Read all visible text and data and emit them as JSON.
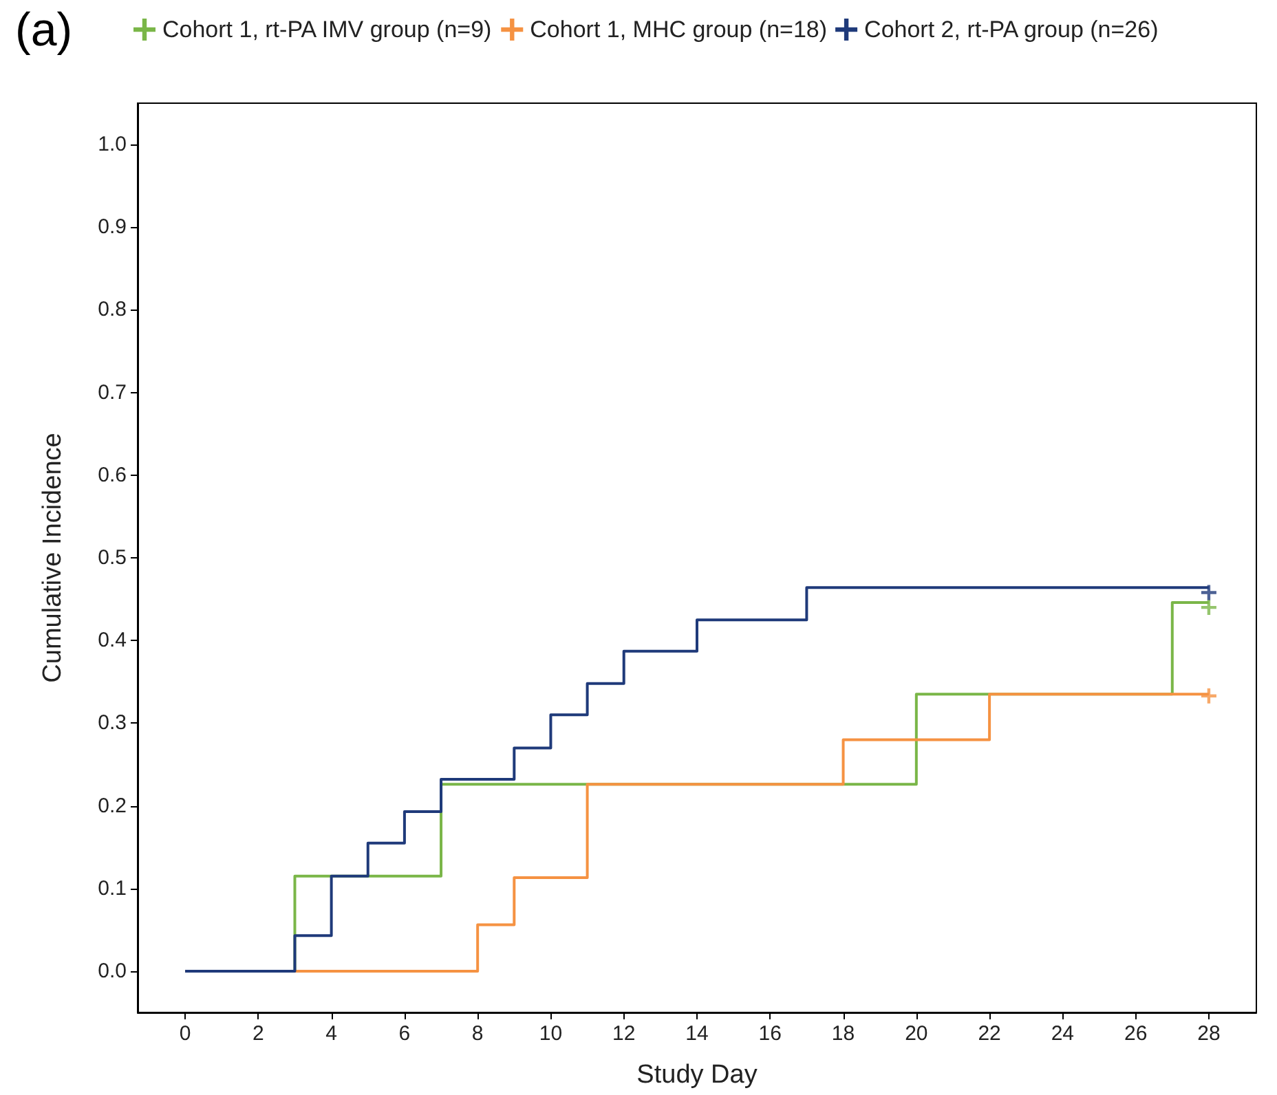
{
  "chart_data": {
    "type": "step",
    "title": "(a)",
    "xlabel": "Study Day",
    "ylabel": "Cumulative Incidence",
    "xlim": [
      -1.3,
      29.3
    ],
    "xticks": [
      0,
      2,
      4,
      6,
      8,
      10,
      12,
      14,
      16,
      18,
      20,
      22,
      24,
      26,
      28
    ],
    "ylim": [
      -0.05,
      1.05
    ],
    "yticks": [
      {
        "value": 0,
        "label": "0.0"
      },
      {
        "value": 0.1,
        "label": "0.1"
      },
      {
        "value": 0.2,
        "label": "0.2"
      },
      {
        "value": 0.3,
        "label": "0.3"
      },
      {
        "value": 0.4,
        "label": "0.4"
      },
      {
        "value": 0.5,
        "label": "0.5"
      },
      {
        "value": 0.6,
        "label": "0.6"
      },
      {
        "value": 0.7,
        "label": "0.7"
      },
      {
        "value": 0.8,
        "label": "0.8"
      },
      {
        "value": 0.9,
        "label": "0.9"
      },
      {
        "value": 1,
        "label": "1.0"
      }
    ],
    "grid": false,
    "legend": "top",
    "line_style": "solid",
    "series": [
      {
        "name": "Cohort 1, rt-PA IMV group (n=9)",
        "color": "#7ab648",
        "x": [
          0,
          3,
          7,
          20,
          27,
          28
        ],
        "values": [
          0,
          0.115,
          0.226,
          0.335,
          0.446,
          0.446
        ]
      },
      {
        "name": "Cohort 1, MHC group (n=18)",
        "color": "#f59242",
        "x": [
          0,
          8,
          9,
          11,
          18,
          22,
          28
        ],
        "values": [
          0,
          0.056,
          0.113,
          0.226,
          0.28,
          0.335,
          0.335
        ]
      },
      {
        "name": "Cohort 2, rt-PA group (n=26)",
        "color": "#1f3a7a",
        "x": [
          0,
          3,
          4,
          5,
          6,
          7,
          9,
          10,
          11,
          12,
          14,
          17,
          28
        ],
        "values": [
          0,
          0.043,
          0.115,
          0.155,
          0.193,
          0.232,
          0.27,
          0.31,
          0.348,
          0.387,
          0.425,
          0.464,
          0.464
        ]
      },
      {
        "type": "scatter",
        "marker": "cross",
        "color": "#7ab648",
        "x": [
          28
        ],
        "values": [
          0.44
        ]
      },
      {
        "type": "scatter",
        "marker": "cross",
        "color": "#f59242",
        "x": [
          28
        ],
        "values": [
          0.333
        ]
      },
      {
        "type": "scatter",
        "marker": "cross",
        "color": "#1f3a7a",
        "x": [
          28
        ],
        "values": [
          0.458
        ]
      }
    ]
  }
}
